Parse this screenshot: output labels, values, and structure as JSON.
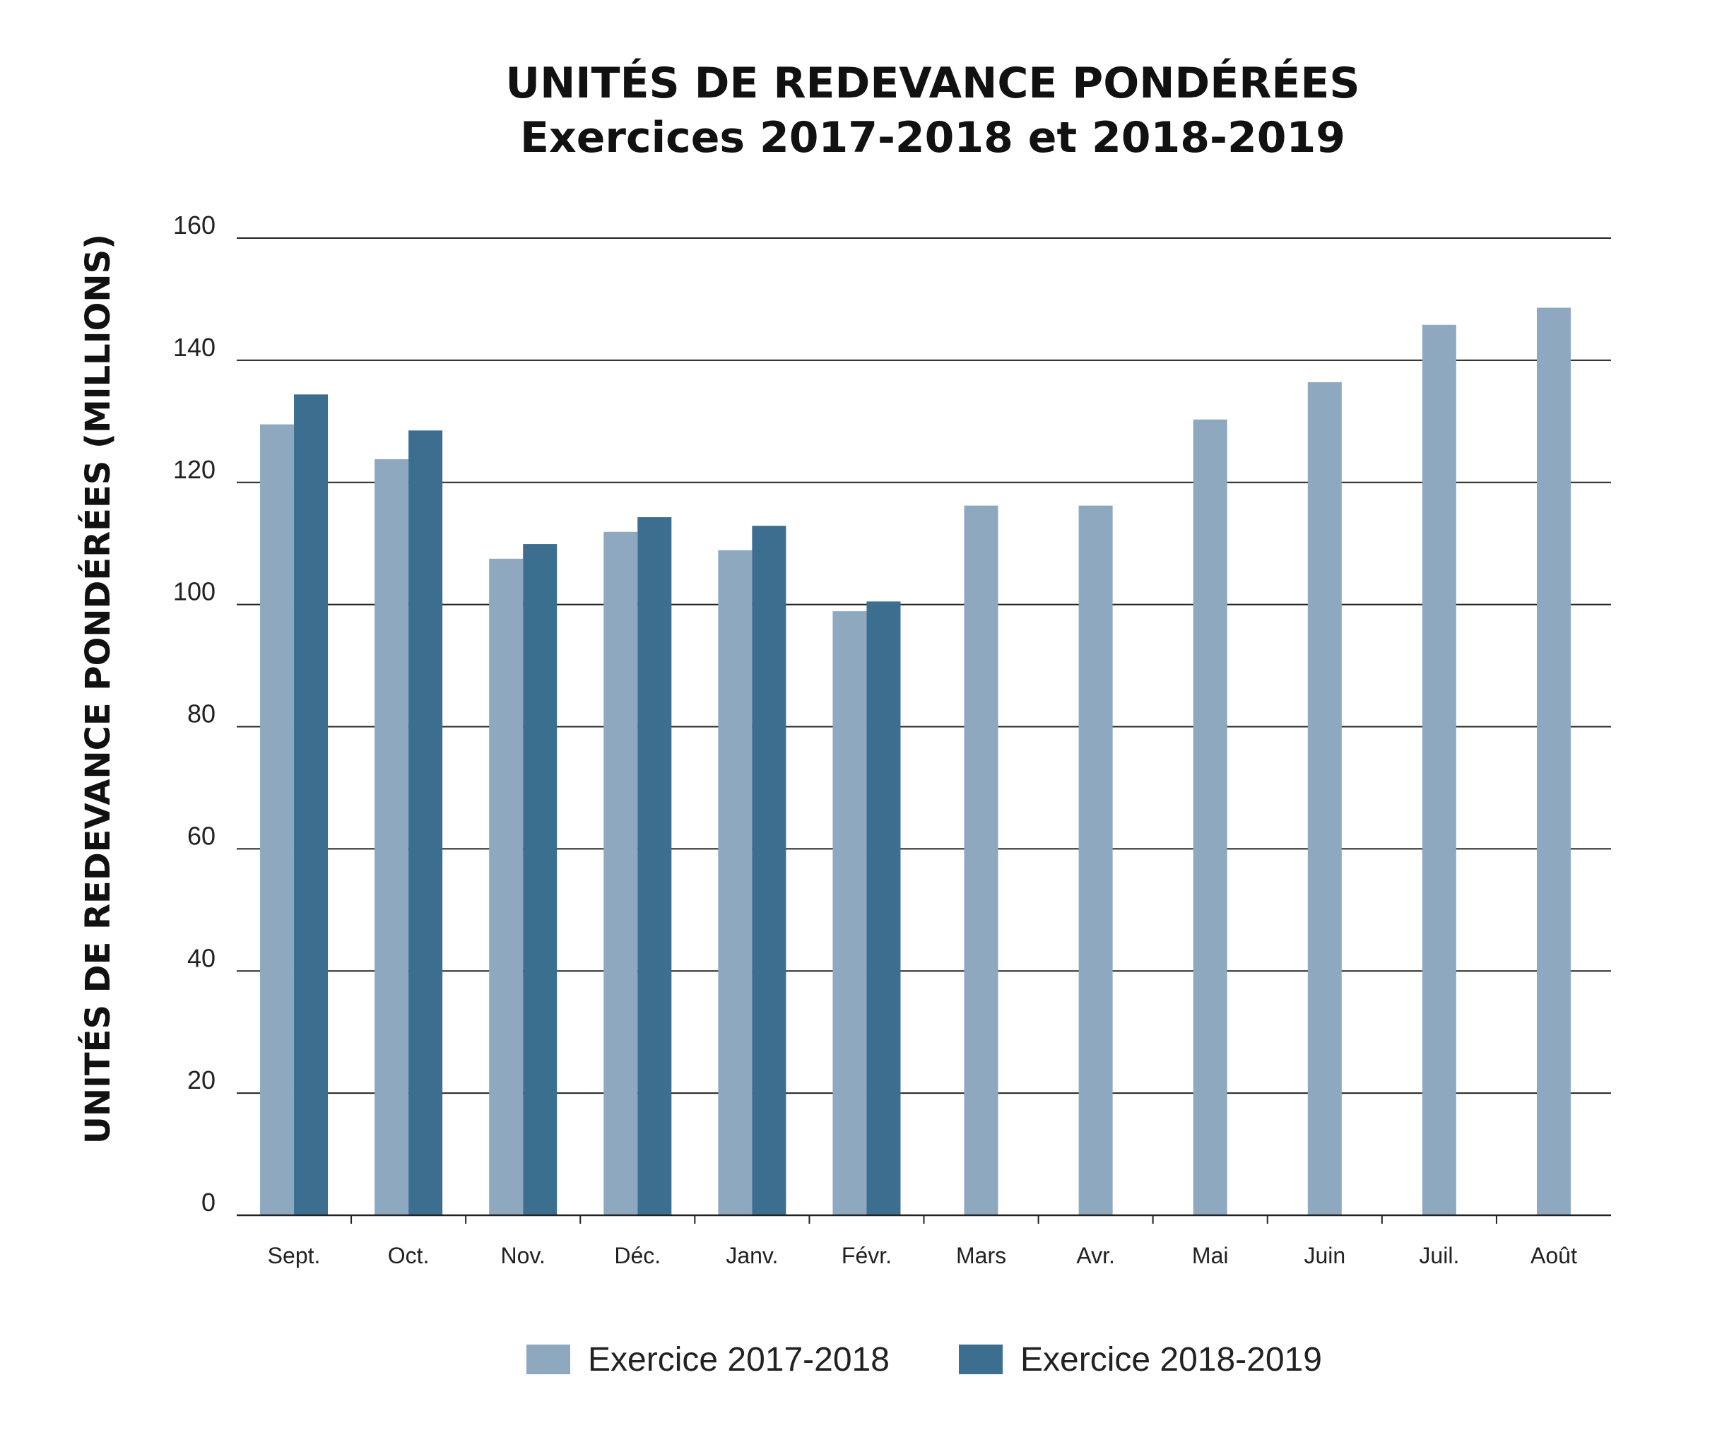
{
  "chart_data": {
    "type": "bar",
    "title": "UNITÉS DE REDEVANCE PONDÉRÉES",
    "subtitle": "Exercices 2017-2018 et 2018-2019",
    "xlabel": "",
    "ylabel": "UNITÉS DE REDEVANCE PONDÉRÉES (MILLIONS)",
    "ylim": [
      0,
      160
    ],
    "yticks": [
      0,
      20,
      40,
      60,
      80,
      100,
      120,
      140,
      160
    ],
    "grid": true,
    "legend_position": "bottom",
    "categories": [
      "Sept.",
      "Oct.",
      "Nov.",
      "Déc.",
      "Janv.",
      "Févr.",
      "Mars",
      "Avr.",
      "Mai",
      "Juin",
      "Juil.",
      "Août"
    ],
    "series": [
      {
        "name": "Exercice 2017-2018",
        "color": "#8ea8c0",
        "values": [
          129.5,
          123.8,
          107.5,
          111.9,
          108.9,
          98.9,
          116.2,
          116.2,
          130.3,
          136.4,
          145.8,
          148.6
        ]
      },
      {
        "name": "Exercice 2018-2019",
        "color": "#3b6e8f",
        "values": [
          134.4,
          128.5,
          109.9,
          114.3,
          112.9,
          100.5,
          null,
          null,
          null,
          null,
          null,
          null
        ]
      }
    ]
  }
}
